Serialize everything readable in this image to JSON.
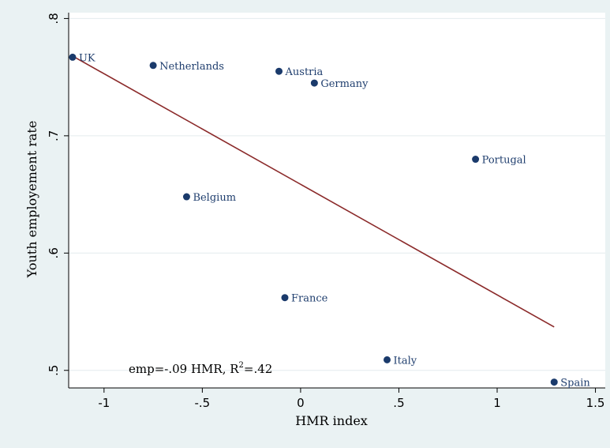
{
  "chart_data": {
    "type": "scatter",
    "xlabel": "HMR index",
    "ylabel": "Youth employement rate",
    "xlim": [
      -1.18,
      1.55
    ],
    "ylim": [
      0.485,
      0.805
    ],
    "x_ticks": [
      -1,
      -0.5,
      0,
      0.5,
      1,
      1.5
    ],
    "x_tick_labels": [
      "-1",
      "-.5",
      "0",
      ".5",
      "1",
      "1.5"
    ],
    "y_ticks": [
      0.5,
      0.6,
      0.7,
      0.8
    ],
    "y_tick_labels": [
      ".5",
      ".6",
      ".7",
      ".8"
    ],
    "grid": true,
    "points": [
      {
        "label": "UK",
        "x": -1.16,
        "y": 0.767
      },
      {
        "label": "Netherlands",
        "x": -0.75,
        "y": 0.76
      },
      {
        "label": "Austria",
        "x": -0.11,
        "y": 0.755
      },
      {
        "label": "Germany",
        "x": 0.07,
        "y": 0.745
      },
      {
        "label": "Portugal",
        "x": 0.89,
        "y": 0.68
      },
      {
        "label": "Belgium",
        "x": -0.58,
        "y": 0.648
      },
      {
        "label": "France",
        "x": -0.08,
        "y": 0.562
      },
      {
        "label": "Italy",
        "x": 0.44,
        "y": 0.509
      },
      {
        "label": "Spain",
        "x": 1.29,
        "y": 0.49
      }
    ],
    "fit_line": {
      "x": [
        -1.16,
        1.29
      ],
      "y": [
        0.768,
        0.537
      ]
    },
    "annotation": "emp=-.09 HMR, R²=.42",
    "colors": {
      "point": "#1a3a6b",
      "fit_line": "#8b2a2a",
      "label": "#1f3e6e",
      "plot_bg": "#ffffff",
      "page_bg": "#eaf2f3",
      "grid": "#e4ecee"
    }
  }
}
